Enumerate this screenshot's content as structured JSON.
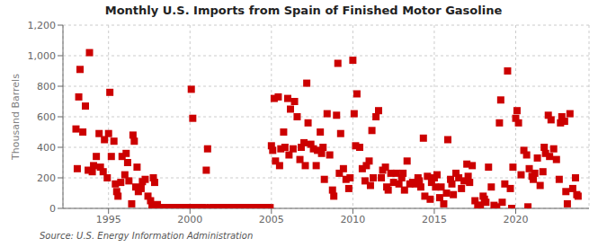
{
  "chart_data": {
    "type": "scatter",
    "title": "Monthly U.S. Imports from Spain of Finished Motor Gasoline",
    "ylabel": "Thousand Barrels",
    "annotations": [
      "Source: U.S. Energy Information Administration"
    ],
    "color": "#cc0000",
    "marker": "square",
    "grid": true,
    "xlim": [
      1992.2,
      2024.5
    ],
    "xticks": [
      1995,
      2000,
      2005,
      2010,
      2015,
      2020
    ],
    "ylim": [
      0,
      1200
    ],
    "yticks": [
      0,
      200,
      400,
      600,
      800,
      {
        "value": 1000,
        "label": "1,000"
      },
      {
        "value": 1200,
        "label": "1,200"
      }
    ],
    "x": [
      1993.0,
      1993.08,
      1993.17,
      1993.25,
      1993.42,
      1993.58,
      1993.75,
      1993.83,
      1994.0,
      1994.08,
      1994.25,
      1994.42,
      1994.5,
      1994.67,
      1994.75,
      1994.92,
      1995.0,
      1995.08,
      1995.17,
      1995.33,
      1995.42,
      1995.5,
      1995.58,
      1995.75,
      1995.83,
      1996.0,
      1996.08,
      1996.17,
      1996.25,
      1996.42,
      1996.5,
      1996.58,
      1996.67,
      1996.75,
      1996.83,
      1997.0,
      1997.08,
      1997.25,
      1997.42,
      1997.58,
      1997.67,
      1997.75,
      1997.83,
      1998.0,
      1998.08,
      1998.17,
      1998.25,
      1998.42,
      1998.58,
      1998.75,
      1998.92,
      1999.0,
      1999.08,
      1999.17,
      1999.25,
      1999.42,
      1999.58,
      1999.75,
      1999.92,
      2000.0,
      2000.08,
      2000.17,
      2000.25,
      2000.42,
      2000.58,
      2000.75,
      2000.92,
      2001.0,
      2001.08,
      2001.25,
      2001.42,
      2001.58,
      2001.75,
      2001.92,
      2002.0,
      2002.08,
      2002.25,
      2002.42,
      2002.58,
      2002.75,
      2002.92,
      2003.0,
      2003.08,
      2003.25,
      2003.42,
      2003.58,
      2003.75,
      2003.92,
      2004.0,
      2004.08,
      2004.17,
      2004.25,
      2004.42,
      2004.58,
      2004.67,
      2004.75,
      2004.92,
      2005.0,
      2005.08,
      2005.17,
      2005.25,
      2005.42,
      2005.5,
      2005.58,
      2005.75,
      2005.83,
      2006.0,
      2006.08,
      2006.17,
      2006.33,
      2006.42,
      2006.58,
      2006.75,
      2006.83,
      2007.0,
      2007.08,
      2007.17,
      2007.25,
      2007.42,
      2007.58,
      2007.75,
      2007.83,
      2008.0,
      2008.08,
      2008.17,
      2008.25,
      2008.42,
      2008.58,
      2008.75,
      2008.83,
      2009.0,
      2009.08,
      2009.17,
      2009.25,
      2009.42,
      2009.58,
      2009.75,
      2009.83,
      2010.0,
      2010.08,
      2010.17,
      2010.25,
      2010.42,
      2010.58,
      2010.75,
      2010.83,
      2011.0,
      2011.08,
      2011.17,
      2011.25,
      2011.42,
      2011.58,
      2011.75,
      2011.83,
      2012.0,
      2012.08,
      2012.17,
      2012.33,
      2012.5,
      2012.67,
      2012.83,
      2013.0,
      2013.08,
      2013.17,
      2013.33,
      2013.5,
      2013.67,
      2013.83,
      2014.0,
      2014.08,
      2014.17,
      2014.33,
      2014.42,
      2014.58,
      2014.75,
      2014.83,
      2015.0,
      2015.08,
      2015.17,
      2015.33,
      2015.42,
      2015.58,
      2015.75,
      2015.83,
      2016.0,
      2016.08,
      2016.17,
      2016.33,
      2016.5,
      2016.67,
      2016.83,
      2017.0,
      2017.08,
      2017.17,
      2017.33,
      2017.5,
      2017.67,
      2017.83,
      2018.0,
      2018.08,
      2018.17,
      2018.33,
      2018.5,
      2018.67,
      2018.83,
      2019.0,
      2019.08,
      2019.17,
      2019.33,
      2019.5,
      2019.67,
      2019.75,
      2019.83,
      2020.0,
      2020.08,
      2020.17,
      2020.33,
      2020.5,
      2020.67,
      2020.75,
      2020.83,
      2021.0,
      2021.08,
      2021.17,
      2021.33,
      2021.5,
      2021.67,
      2021.75,
      2021.83,
      2022.0,
      2022.08,
      2022.17,
      2022.33,
      2022.5,
      2022.67,
      2022.75,
      2022.83,
      2023.0,
      2023.08,
      2023.17,
      2023.33,
      2023.5,
      2023.67,
      2023.75,
      2023.83
    ],
    "values": [
      520,
      260,
      730,
      910,
      500,
      670,
      250,
      1020,
      240,
      280,
      340,
      490,
      270,
      240,
      450,
      200,
      490,
      760,
      340,
      440,
      160,
      110,
      80,
      170,
      340,
      220,
      360,
      300,
      180,
      30,
      480,
      440,
      140,
      270,
      110,
      130,
      175,
      190,
      80,
      50,
      20,
      200,
      170,
      25,
      5,
      5,
      5,
      5,
      5,
      5,
      5,
      5,
      5,
      5,
      5,
      5,
      5,
      5,
      5,
      5,
      780,
      590,
      5,
      5,
      5,
      5,
      5,
      250,
      390,
      5,
      5,
      5,
      5,
      5,
      5,
      5,
      5,
      5,
      5,
      5,
      5,
      5,
      5,
      5,
      5,
      5,
      5,
      5,
      5,
      5,
      5,
      5,
      5,
      5,
      5,
      5,
      5,
      410,
      380,
      720,
      310,
      730,
      280,
      390,
      500,
      400,
      720,
      350,
      650,
      390,
      700,
      600,
      320,
      400,
      430,
      280,
      820,
      560,
      420,
      390,
      280,
      380,
      500,
      360,
      400,
      190,
      620,
      350,
      120,
      80,
      610,
      950,
      230,
      490,
      260,
      190,
      130,
      200,
      970,
      620,
      410,
      750,
      400,
      260,
      180,
      280,
      310,
      150,
      510,
      200,
      600,
      640,
      200,
      250,
      270,
      140,
      120,
      230,
      170,
      230,
      160,
      200,
      230,
      120,
      310,
      160,
      170,
      160,
      200,
      180,
      140,
      460,
      80,
      210,
      60,
      170,
      200,
      140,
      220,
      70,
      140,
      30,
      100,
      450,
      190,
      160,
      90,
      230,
      200,
      130,
      180,
      290,
      210,
      170,
      280,
      50,
      20,
      20,
      80,
      60,
      40,
      270,
      140,
      20,
      10,
      560,
      710,
      40,
      160,
      900,
      130,
      0,
      270,
      590,
      640,
      560,
      220,
      380,
      350,
      10,
      260,
      210,
      190,
      230,
      330,
      150,
      240,
      400,
      360,
      610,
      340,
      580,
      390,
      320,
      190,
      560,
      600,
      570,
      110,
      30,
      620,
      130,
      200,
      90,
      80
    ]
  }
}
